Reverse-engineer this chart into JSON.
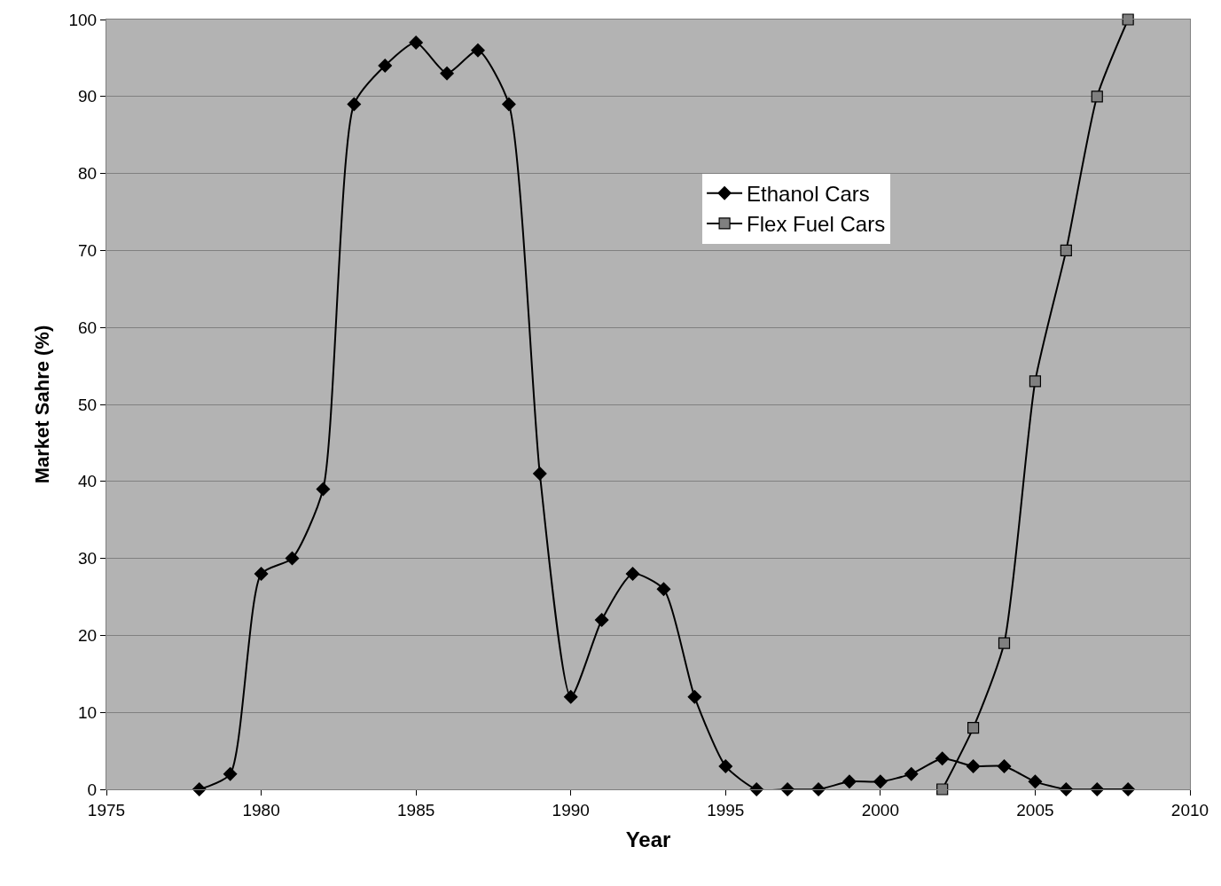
{
  "chart_data": {
    "type": "line",
    "xlabel": "Year",
    "ylabel": "Market Sahre (%)",
    "series": [
      {
        "name": "Ethanol Cars",
        "color": "#000000",
        "marker": "diamond",
        "x": [
          1978,
          1979,
          1980,
          1981,
          1982,
          1983,
          1984,
          1985,
          1986,
          1987,
          1988,
          1989,
          1990,
          1991,
          1992,
          1993,
          1994,
          1995,
          1996,
          1997,
          1998,
          1999,
          2000,
          2001,
          2002,
          2003,
          2004,
          2005,
          2006,
          2007,
          2008
        ],
        "values": [
          0,
          2,
          28,
          30,
          39,
          89,
          94,
          97,
          93,
          96,
          89,
          41,
          12,
          22,
          28,
          26,
          12,
          3,
          0,
          0,
          0,
          1,
          1,
          2,
          4,
          3,
          3,
          1,
          0,
          0,
          0
        ]
      },
      {
        "name": "Flex Fuel Cars",
        "color": "#808080",
        "marker": "square",
        "x": [
          2002,
          2003,
          2004,
          2005,
          2006,
          2007,
          2008
        ],
        "values": [
          0,
          8,
          19,
          53,
          70,
          90,
          100
        ]
      }
    ],
    "xlim": [
      1975,
      2010
    ],
    "xticks": [
      1975,
      1980,
      1985,
      1990,
      1995,
      2000,
      2005,
      2010
    ],
    "ylim": [
      0,
      100
    ],
    "yticks": [
      0,
      10,
      20,
      30,
      40,
      50,
      60,
      70,
      80,
      90,
      100
    ],
    "grid": "y",
    "legend": "top right",
    "line_style": "solid"
  }
}
